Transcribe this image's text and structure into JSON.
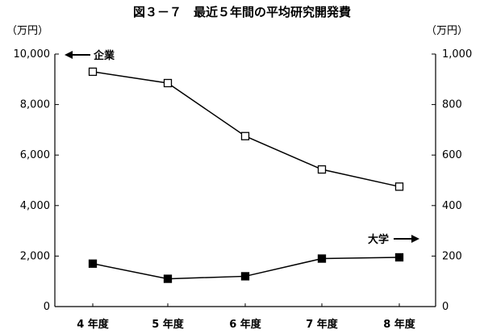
{
  "chart_data": {
    "type": "line",
    "title": "図３－７　最近５年間の平均研究開発費",
    "categories": [
      "4 年度",
      "5 年度",
      "6 年度",
      "7 年度",
      "8 年度"
    ],
    "left_axis": {
      "unit": "（万円）",
      "ylim": [
        0,
        10000
      ],
      "ticks": [
        0,
        2000,
        4000,
        6000,
        8000,
        10000
      ],
      "tick_labels": [
        "0",
        "2,000",
        "4,000",
        "6,000",
        "8,000",
        "10,000"
      ]
    },
    "right_axis": {
      "unit": "（万円）",
      "ylim": [
        0,
        1000
      ],
      "ticks": [
        0,
        200,
        400,
        600,
        800,
        1000
      ],
      "tick_labels": [
        "0",
        "200",
        "400",
        "600",
        "800",
        "1,000"
      ]
    },
    "series": [
      {
        "name": "企業",
        "axis": "left",
        "marker": "open-square",
        "values": [
          9300,
          8850,
          6750,
          5430,
          4750
        ]
      },
      {
        "name": "大学",
        "axis": "right",
        "marker": "filled-square",
        "values": [
          170,
          110,
          120,
          190,
          195
        ]
      }
    ],
    "grid": false,
    "xlabel": "",
    "ylabel": ""
  }
}
